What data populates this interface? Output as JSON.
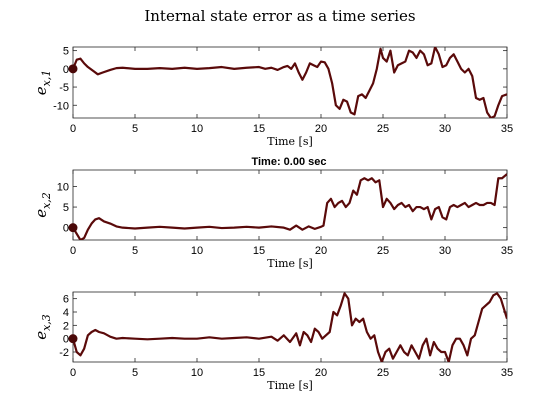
{
  "figure": {
    "title": "Internal state error as a time series",
    "annotation": "Time: 0.00 sec"
  },
  "colors": {
    "line": "#5a0a0a",
    "marker": "#4a0808",
    "axes": "#262626",
    "background": "#ffffff"
  },
  "chart_data": [
    {
      "type": "line",
      "ylabel_base": "e",
      "ylabel_sub": "x,1",
      "xlabel": "Time [s]",
      "xlim": [
        0,
        35
      ],
      "ylim": [
        -13.5,
        6
      ],
      "xticks": [
        0,
        5,
        10,
        15,
        20,
        25,
        30,
        35
      ],
      "yticks": [
        -10,
        -5,
        0,
        5
      ],
      "marker": [
        0,
        0
      ],
      "x": [
        0,
        0.3,
        0.6,
        0.9,
        1.2,
        1.6,
        2.0,
        2.4,
        3.0,
        3.5,
        4.0,
        5.0,
        6.0,
        7.0,
        8.0,
        9.0,
        10.0,
        11.0,
        12.0,
        13.0,
        14.0,
        15.0,
        15.5,
        16.0,
        16.5,
        17.0,
        17.3,
        17.6,
        17.9,
        18.2,
        18.5,
        18.8,
        19.1,
        19.4,
        19.7,
        20.0,
        20.3,
        20.6,
        20.9,
        21.2,
        21.5,
        21.8,
        22.1,
        22.4,
        22.7,
        23.0,
        23.3,
        23.6,
        23.9,
        24.2,
        24.5,
        24.8,
        25.0,
        25.3,
        25.6,
        25.9,
        26.2,
        26.5,
        26.8,
        27.1,
        27.4,
        27.7,
        28.0,
        28.3,
        28.6,
        28.9,
        29.2,
        29.5,
        29.8,
        30.1,
        30.4,
        30.7,
        31.0,
        31.3,
        31.6,
        31.9,
        32.2,
        32.5,
        32.8,
        33.1,
        33.4,
        33.7,
        34.0,
        34.3,
        34.6,
        35.0
      ],
      "y": [
        0,
        2.5,
        2.8,
        1.5,
        0.5,
        -0.5,
        -1.5,
        -1.0,
        -0.3,
        0.2,
        0.3,
        0,
        0,
        0.2,
        0,
        0.3,
        0,
        0.2,
        0.5,
        0,
        0.3,
        0.5,
        0,
        0.3,
        -0.3,
        0.5,
        0.8,
        0,
        1.5,
        -1.0,
        -3.0,
        -1.0,
        1.5,
        1.0,
        0.5,
        2.0,
        1.8,
        0,
        -4.0,
        -10.0,
        -11.0,
        -8.5,
        -9.0,
        -12.0,
        -12.5,
        -7.5,
        -7.0,
        -8.0,
        -6.0,
        -4.0,
        0,
        5.5,
        3.0,
        2.0,
        5.0,
        -1.0,
        1.0,
        1.5,
        2.0,
        5.0,
        4.5,
        3.0,
        5.0,
        4.0,
        1.0,
        1.5,
        6.0,
        4.0,
        0.5,
        1.0,
        3.0,
        4.0,
        2.0,
        0,
        -1.0,
        0,
        -2.0,
        -8.0,
        -8.5,
        -8.0,
        -12.0,
        -13.5,
        -13.0,
        -10.0,
        -7.5,
        -7.0
      ]
    },
    {
      "type": "line",
      "ylabel_base": "e",
      "ylabel_sub": "x,2",
      "xlabel": "Time [s]",
      "xlim": [
        0,
        35
      ],
      "ylim": [
        -3,
        14
      ],
      "xticks": [
        0,
        5,
        10,
        15,
        20,
        25,
        30,
        35
      ],
      "yticks": [
        0,
        5,
        10
      ],
      "marker": [
        0,
        0
      ],
      "x": [
        0,
        0.3,
        0.6,
        0.9,
        1.2,
        1.5,
        1.8,
        2.1,
        2.5,
        3.0,
        3.5,
        4.0,
        5.0,
        6.0,
        7.0,
        8.0,
        9.0,
        10.0,
        11.0,
        12.0,
        13.0,
        14.0,
        15.0,
        16.0,
        17.0,
        17.5,
        18.0,
        18.5,
        19.0,
        19.5,
        20.0,
        20.2,
        20.5,
        20.8,
        21.1,
        21.4,
        21.7,
        22.0,
        22.3,
        22.6,
        22.9,
        23.2,
        23.5,
        23.8,
        24.1,
        24.4,
        24.7,
        25.0,
        25.3,
        25.6,
        25.9,
        26.2,
        26.5,
        26.8,
        27.1,
        27.4,
        27.7,
        28.0,
        28.3,
        28.6,
        28.9,
        29.2,
        29.5,
        29.8,
        30.1,
        30.4,
        30.7,
        31.0,
        31.3,
        31.6,
        31.9,
        32.2,
        32.5,
        32.8,
        33.1,
        33.4,
        33.7,
        34.0,
        34.3,
        34.6,
        35.0
      ],
      "y": [
        0,
        -1.5,
        -3.0,
        -2.5,
        -0.5,
        1.0,
        2.0,
        2.3,
        1.5,
        1.0,
        0.3,
        0,
        -0.2,
        0,
        0.2,
        0,
        -0.2,
        0,
        0.2,
        -0.1,
        0,
        0.2,
        0,
        0.3,
        0,
        -0.5,
        0.5,
        -0.5,
        0.3,
        -0.3,
        0.2,
        0.5,
        6.0,
        7.0,
        5.0,
        6.0,
        6.5,
        5.0,
        6.0,
        9.0,
        8.0,
        11.5,
        12.0,
        11.5,
        12.0,
        11.0,
        11.5,
        5.0,
        7.0,
        6.0,
        4.5,
        5.5,
        6.0,
        5.0,
        5.5,
        4.0,
        5.0,
        5.0,
        4.5,
        5.0,
        2.0,
        4.5,
        5.0,
        2.5,
        2.0,
        5.0,
        5.5,
        5.0,
        5.5,
        6.0,
        5.0,
        5.5,
        6.0,
        5.5,
        5.5,
        6.0,
        6.0,
        5.5,
        12.0,
        12.0,
        13.0
      ]
    },
    {
      "type": "line",
      "ylabel_base": "e",
      "ylabel_sub": "x,3",
      "xlabel": "Time [s]",
      "xlim": [
        0,
        35
      ],
      "ylim": [
        -3.5,
        7
      ],
      "xticks": [
        0,
        5,
        10,
        15,
        20,
        25,
        30,
        35
      ],
      "yticks": [
        -2,
        0,
        2,
        4,
        6
      ],
      "marker": [
        0,
        0
      ],
      "x": [
        0,
        0.3,
        0.6,
        0.9,
        1.2,
        1.5,
        1.8,
        2.1,
        2.5,
        3.0,
        3.5,
        4.0,
        5.0,
        6.0,
        7.0,
        8.0,
        9.0,
        10.0,
        11.0,
        12.0,
        13.0,
        14.0,
        15.0,
        16.0,
        16.5,
        17.0,
        17.5,
        18.0,
        18.3,
        18.6,
        18.9,
        19.2,
        19.5,
        19.8,
        20.1,
        20.4,
        20.7,
        21.0,
        21.3,
        21.6,
        21.9,
        22.2,
        22.5,
        22.8,
        23.1,
        23.4,
        23.7,
        24.0,
        24.3,
        24.6,
        24.9,
        25.2,
        25.5,
        25.8,
        26.1,
        26.4,
        26.7,
        27.0,
        27.3,
        27.6,
        27.9,
        28.2,
        28.5,
        28.8,
        29.1,
        29.4,
        29.7,
        30.0,
        30.3,
        30.6,
        30.9,
        31.2,
        31.5,
        31.8,
        32.1,
        32.4,
        32.7,
        33.0,
        33.3,
        33.6,
        33.9,
        34.2,
        34.5,
        35.0
      ],
      "y": [
        0,
        -2.0,
        -2.5,
        -1.5,
        0.5,
        1.0,
        1.3,
        1.0,
        0.8,
        0.3,
        0,
        0.1,
        0,
        -0.1,
        0,
        0.1,
        0,
        0,
        0.2,
        0,
        0.1,
        0.2,
        0,
        0.3,
        -0.3,
        0.5,
        -0.5,
        0.8,
        -1.0,
        1.0,
        0.5,
        -0.5,
        1.5,
        1.0,
        0,
        0.5,
        1.0,
        4.0,
        3.5,
        5.0,
        6.8,
        6.0,
        2.0,
        3.0,
        2.5,
        3.0,
        1.0,
        0,
        0.5,
        -2.0,
        -3.5,
        -2.0,
        -1.5,
        -3.0,
        -2.0,
        -1.0,
        -2.0,
        -2.5,
        -1.0,
        -2.0,
        -3.0,
        -1.0,
        0,
        -2.5,
        -0.5,
        -1.5,
        -2.0,
        -2.0,
        -3.5,
        -1.0,
        0,
        0,
        -1.0,
        -2.5,
        0,
        0.5,
        2.5,
        4.5,
        5.0,
        5.5,
        6.5,
        6.8,
        6.0,
        3.0
      ]
    }
  ]
}
